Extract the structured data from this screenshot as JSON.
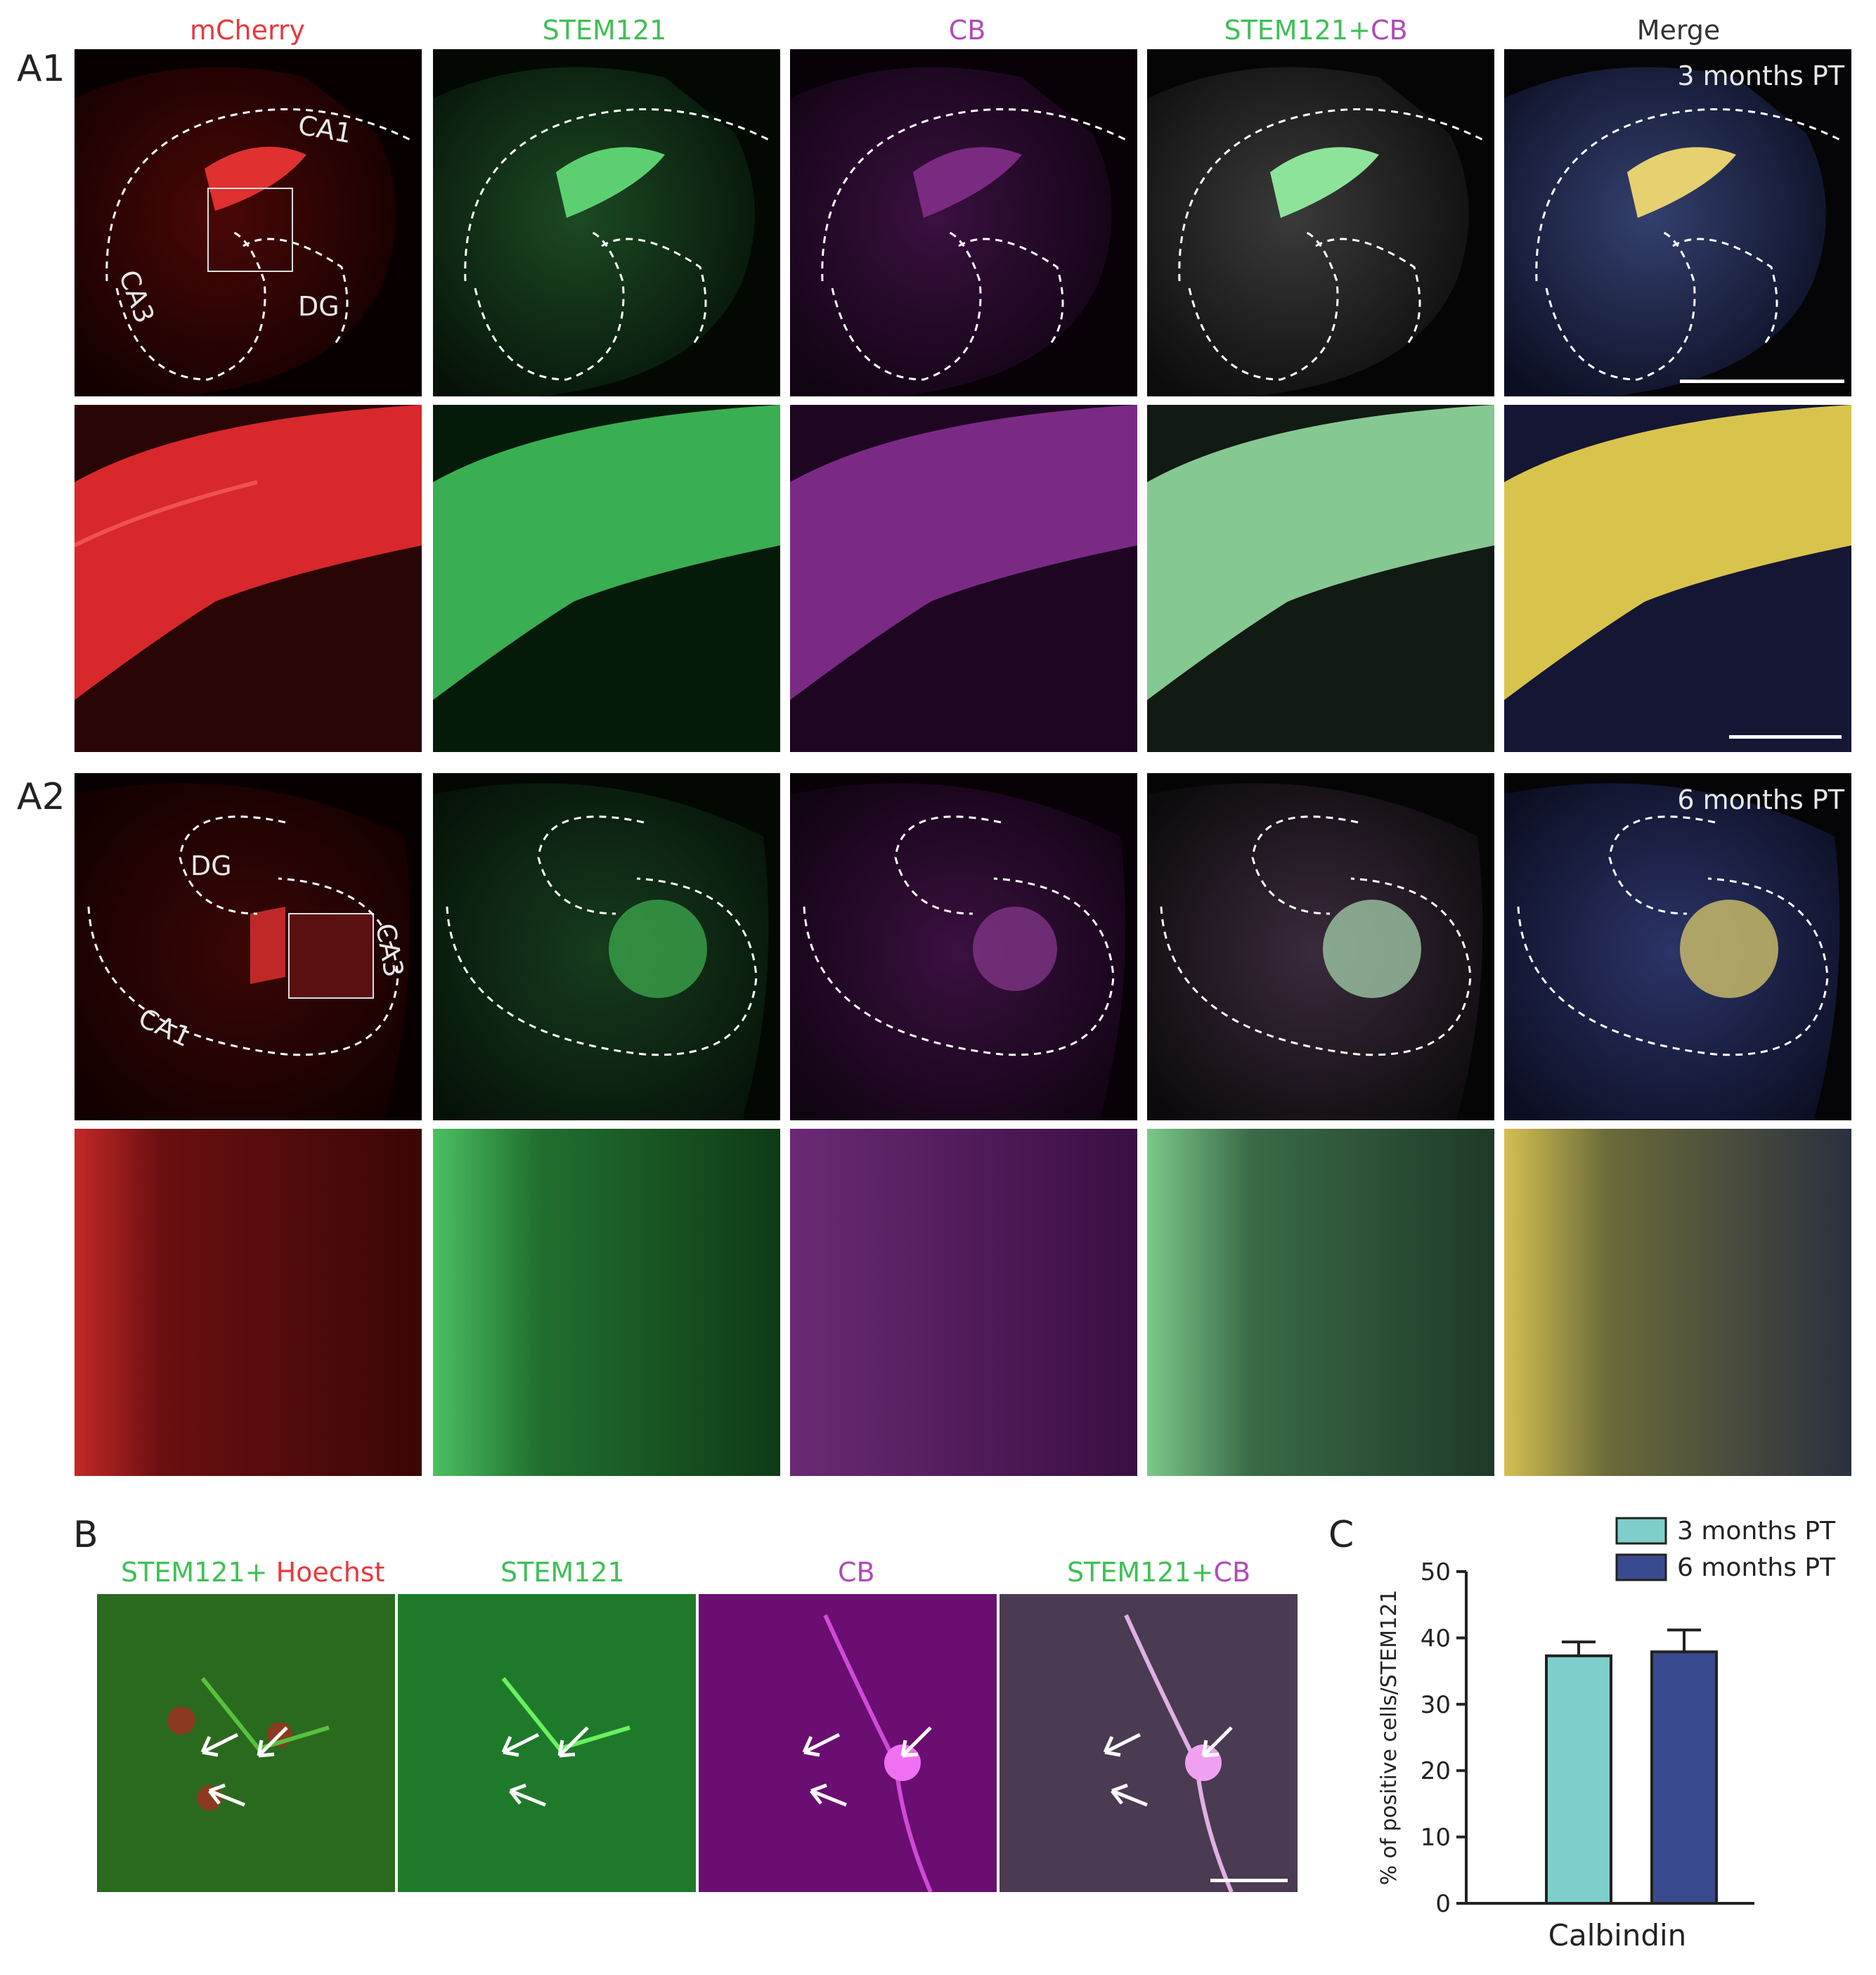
{
  "figure": {
    "column_titles": {
      "mcherry": "mCherry",
      "stem121": "STEM121",
      "cb": "CB",
      "stem_part": "STEM121",
      "plus": "+",
      "cb_part": "CB",
      "merge": "Merge"
    },
    "panel_labels": {
      "a1": "A1",
      "a2": "A2",
      "b": "B",
      "c": "C"
    },
    "timepoints": {
      "a1": "3 months PT",
      "a2": "6 months PT"
    },
    "region_labels": {
      "ca1": "CA1",
      "ca3": "CA3",
      "dg": "DG"
    },
    "b_titles": {
      "stem_part": "STEM121",
      "plus": "+",
      "hoechst": "Hoechst",
      "stem121": "STEM121",
      "cb": "CB",
      "stem_part2": "STEM121",
      "cb_part2": "CB"
    }
  },
  "colors": {
    "red": "#e8383d",
    "green": "#3fbf55",
    "magenta": "#b04ab8",
    "teal": "#7ecfcb",
    "navy": "#3a4a8e"
  },
  "chart_data": {
    "type": "bar",
    "categories": [
      "Calbindin"
    ],
    "series": [
      {
        "name": "3 months PT",
        "values": [
          37.3
        ],
        "error": [
          2.1
        ],
        "color": "#7ecfcb"
      },
      {
        "name": "6 months PT",
        "values": [
          37.9
        ],
        "error": [
          3.3
        ],
        "color": "#3a4a8e"
      }
    ],
    "ylabel": "% of positive cells/STEM121",
    "xlabel": "Calbindin",
    "ylim": [
      0,
      50
    ],
    "yticks": [
      0,
      10,
      20,
      30,
      40,
      50
    ],
    "legend": "top-right"
  }
}
